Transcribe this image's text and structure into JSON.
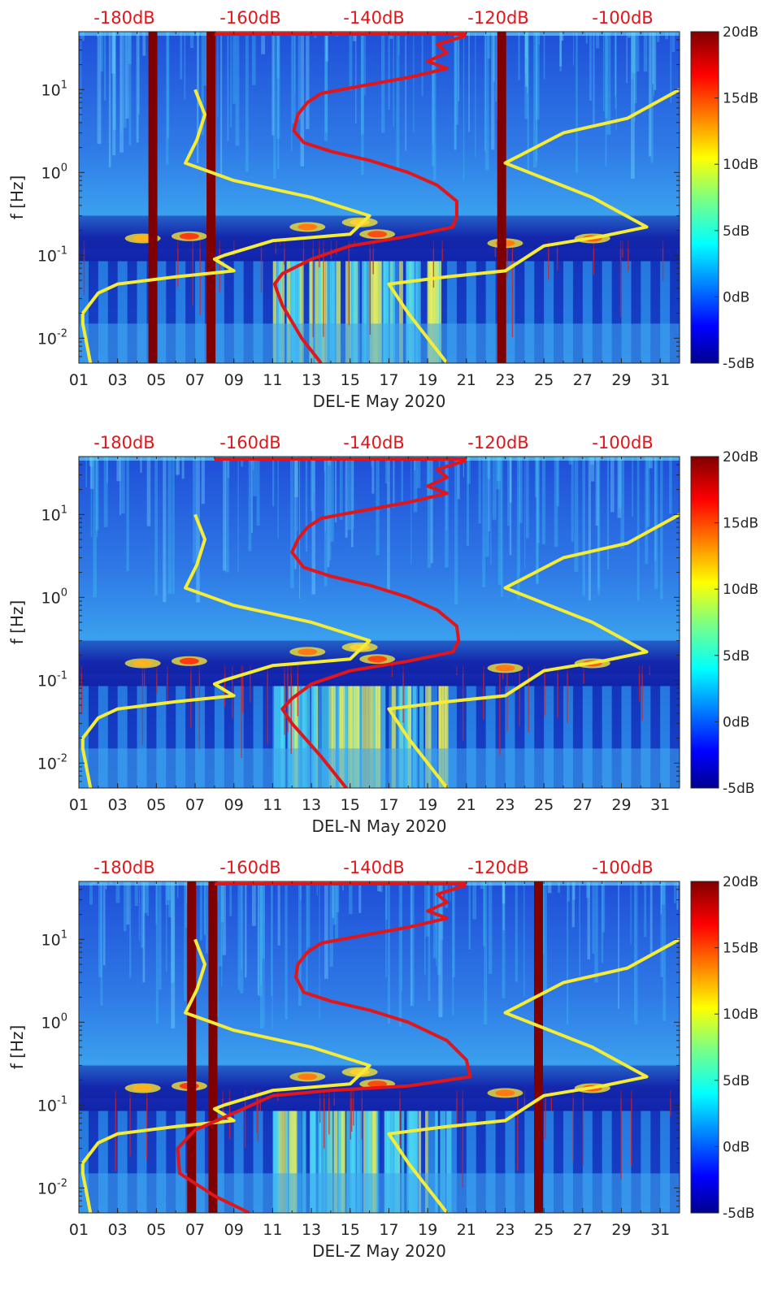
{
  "colors": {
    "background": "#ffffff",
    "axis": "#262626",
    "ambient_db_labels": "#e0161a",
    "red_curve": "#e0161a",
    "yellow_curve": "#f5ec38",
    "saturated_band": "#7f0000",
    "colormap": "jet"
  },
  "chart_data": [
    {
      "type": "heatmap",
      "title": "",
      "xlabel": "DEL-E May 2020",
      "ylabel": "f [Hz]",
      "x_ticks": [
        "01",
        "03",
        "05",
        "07",
        "09",
        "11",
        "13",
        "15",
        "17",
        "19",
        "21",
        "23",
        "25",
        "27",
        "29",
        "31"
      ],
      "y_scale": "log",
      "ylim": [
        0.005,
        50
      ],
      "y_ticks": [
        {
          "base": "10",
          "exp": "1"
        },
        {
          "base": "10",
          "exp": "0"
        },
        {
          "base": "10",
          "exp": "-1"
        },
        {
          "base": "10",
          "exp": "-2"
        }
      ],
      "colorbar": {
        "labels": [
          "20dB",
          "15dB",
          "10dB",
          "5dB",
          "0dB",
          "-5dB"
        ],
        "range": [
          -5,
          20
        ],
        "colormap": "jet"
      },
      "top_db_labels": [
        "-180dB",
        "-160dB",
        "-140dB",
        "-120dB",
        "-100dB"
      ],
      "saturated_days": [
        4.8,
        7.8,
        22.8
      ],
      "red_curve": [
        [
          21,
          45
        ],
        [
          19.5,
          35
        ],
        [
          20,
          28
        ],
        [
          19,
          22
        ],
        [
          20,
          18
        ],
        [
          18,
          14
        ],
        [
          15.5,
          11
        ],
        [
          13.5,
          9
        ],
        [
          12.8,
          7
        ],
        [
          12.3,
          5
        ],
        [
          12.1,
          3.2
        ],
        [
          12.6,
          2.3
        ],
        [
          14,
          1.8
        ],
        [
          16,
          1.4
        ],
        [
          18,
          1.0
        ],
        [
          19.5,
          0.7
        ],
        [
          20.5,
          0.45
        ],
        [
          20.5,
          0.3
        ],
        [
          20.3,
          0.22
        ],
        [
          18,
          0.17
        ],
        [
          15,
          0.13
        ],
        [
          13,
          0.09
        ],
        [
          11.5,
          0.06
        ],
        [
          11.1,
          0.045
        ],
        [
          11.5,
          0.025
        ],
        [
          12.5,
          0.01
        ],
        [
          13.5,
          0.005
        ]
      ],
      "yellow_left": [
        [
          7.0,
          10
        ],
        [
          7.5,
          5
        ],
        [
          7.1,
          2.5
        ],
        [
          6.5,
          1.3
        ],
        [
          9,
          0.8
        ],
        [
          13,
          0.5
        ],
        [
          16,
          0.3
        ],
        [
          15,
          0.18
        ],
        [
          11,
          0.15
        ],
        [
          8.5,
          0.1
        ],
        [
          8,
          0.09
        ],
        [
          9.0,
          0.065
        ],
        [
          6,
          0.055
        ],
        [
          3,
          0.045
        ],
        [
          2,
          0.035
        ],
        [
          1.2,
          0.02
        ],
        [
          1.2,
          0.015
        ],
        [
          1.6,
          0.005
        ]
      ],
      "yellow_right": [
        [
          32,
          10
        ],
        [
          29.3,
          4.5
        ],
        [
          26,
          3
        ],
        [
          23,
          1.3
        ],
        [
          27.5,
          0.5
        ],
        [
          30.3,
          0.22
        ],
        [
          28,
          0.17
        ],
        [
          25,
          0.13
        ],
        [
          23,
          0.065
        ],
        [
          20,
          0.055
        ],
        [
          17,
          0.045
        ],
        [
          18,
          0.02
        ],
        [
          20,
          0.005
        ]
      ]
    },
    {
      "type": "heatmap",
      "title": "",
      "xlabel": "DEL-N May 2020",
      "ylabel": "f [Hz]",
      "x_ticks": [
        "01",
        "03",
        "05",
        "07",
        "09",
        "11",
        "13",
        "15",
        "17",
        "19",
        "21",
        "23",
        "25",
        "27",
        "29",
        "31"
      ],
      "y_scale": "log",
      "ylim": [
        0.005,
        50
      ],
      "y_ticks": [
        {
          "base": "10",
          "exp": "1"
        },
        {
          "base": "10",
          "exp": "0"
        },
        {
          "base": "10",
          "exp": "-1"
        },
        {
          "base": "10",
          "exp": "-2"
        }
      ],
      "colorbar": {
        "labels": [
          "20dB",
          "15dB",
          "10dB",
          "5dB",
          "0dB",
          "-5dB"
        ],
        "range": [
          -5,
          20
        ],
        "colormap": "jet"
      },
      "top_db_labels": [
        "-180dB",
        "-160dB",
        "-140dB",
        "-120dB",
        "-100dB"
      ],
      "saturated_days": [],
      "red_curve": [
        [
          21,
          45
        ],
        [
          19.5,
          35
        ],
        [
          20,
          28
        ],
        [
          19,
          22
        ],
        [
          20,
          18
        ],
        [
          18,
          14
        ],
        [
          15.5,
          11
        ],
        [
          13.5,
          9
        ],
        [
          12.8,
          7
        ],
        [
          12.3,
          5
        ],
        [
          12.0,
          3.5
        ],
        [
          12.6,
          2.3
        ],
        [
          14,
          1.8
        ],
        [
          16,
          1.4
        ],
        [
          18,
          1.0
        ],
        [
          19.5,
          0.7
        ],
        [
          20.5,
          0.45
        ],
        [
          20.6,
          0.3
        ],
        [
          20.3,
          0.22
        ],
        [
          18,
          0.17
        ],
        [
          15,
          0.13
        ],
        [
          13,
          0.09
        ],
        [
          12,
          0.06
        ],
        [
          11.5,
          0.045
        ],
        [
          12,
          0.03
        ],
        [
          13.5,
          0.012
        ],
        [
          14.8,
          0.005
        ]
      ],
      "yellow_left": [
        [
          7.0,
          10
        ],
        [
          7.5,
          5
        ],
        [
          7.1,
          2.5
        ],
        [
          6.5,
          1.3
        ],
        [
          9,
          0.8
        ],
        [
          13,
          0.5
        ],
        [
          16,
          0.3
        ],
        [
          15,
          0.18
        ],
        [
          11,
          0.15
        ],
        [
          8.5,
          0.1
        ],
        [
          8,
          0.09
        ],
        [
          9.0,
          0.065
        ],
        [
          6,
          0.055
        ],
        [
          3,
          0.045
        ],
        [
          2,
          0.035
        ],
        [
          1.2,
          0.02
        ],
        [
          1.2,
          0.015
        ],
        [
          1.6,
          0.005
        ]
      ],
      "yellow_right": [
        [
          32,
          10
        ],
        [
          29.3,
          4.5
        ],
        [
          26,
          3
        ],
        [
          23,
          1.3
        ],
        [
          27.5,
          0.5
        ],
        [
          30.3,
          0.22
        ],
        [
          28,
          0.17
        ],
        [
          25,
          0.13
        ],
        [
          23,
          0.065
        ],
        [
          20,
          0.055
        ],
        [
          17,
          0.045
        ],
        [
          18,
          0.02
        ],
        [
          20,
          0.005
        ]
      ]
    },
    {
      "type": "heatmap",
      "title": "",
      "xlabel": "DEL-Z May 2020",
      "ylabel": "f [Hz]",
      "x_ticks": [
        "01",
        "03",
        "05",
        "07",
        "09",
        "11",
        "13",
        "15",
        "17",
        "19",
        "21",
        "23",
        "25",
        "27",
        "29",
        "31"
      ],
      "y_scale": "log",
      "ylim": [
        0.005,
        50
      ],
      "y_ticks": [
        {
          "base": "10",
          "exp": "1"
        },
        {
          "base": "10",
          "exp": "0"
        },
        {
          "base": "10",
          "exp": "-1"
        },
        {
          "base": "10",
          "exp": "-2"
        }
      ],
      "colorbar": {
        "labels": [
          "20dB",
          "15dB",
          "10dB",
          "5dB",
          "0dB",
          "-5dB"
        ],
        "range": [
          -5,
          20
        ],
        "colormap": "jet"
      },
      "top_db_labels": [
        "-180dB",
        "-160dB",
        "-140dB",
        "-120dB",
        "-100dB"
      ],
      "saturated_days": [
        6.8,
        7.9,
        24.7
      ],
      "red_curve": [
        [
          21,
          45
        ],
        [
          19.5,
          35
        ],
        [
          20,
          28
        ],
        [
          19,
          22
        ],
        [
          20,
          18
        ],
        [
          18,
          14
        ],
        [
          15.5,
          11
        ],
        [
          13.5,
          9
        ],
        [
          12.8,
          7
        ],
        [
          12.3,
          5
        ],
        [
          12.2,
          3.5
        ],
        [
          12.6,
          2.3
        ],
        [
          14,
          1.8
        ],
        [
          16,
          1.4
        ],
        [
          18,
          1.0
        ],
        [
          20,
          0.6
        ],
        [
          21,
          0.35
        ],
        [
          21.2,
          0.22
        ],
        [
          18,
          0.17
        ],
        [
          14,
          0.15
        ],
        [
          11,
          0.13
        ],
        [
          9,
          0.08
        ],
        [
          7,
          0.05
        ],
        [
          6.1,
          0.03
        ],
        [
          6.2,
          0.015
        ],
        [
          8,
          0.008
        ],
        [
          9.8,
          0.005
        ]
      ],
      "yellow_left": [
        [
          7.0,
          10
        ],
        [
          7.5,
          5
        ],
        [
          7.1,
          2.5
        ],
        [
          6.5,
          1.3
        ],
        [
          9,
          0.8
        ],
        [
          13,
          0.5
        ],
        [
          16,
          0.3
        ],
        [
          15,
          0.18
        ],
        [
          11,
          0.15
        ],
        [
          8.5,
          0.1
        ],
        [
          8,
          0.09
        ],
        [
          9.0,
          0.065
        ],
        [
          6,
          0.055
        ],
        [
          3,
          0.045
        ],
        [
          2,
          0.035
        ],
        [
          1.2,
          0.02
        ],
        [
          1.2,
          0.015
        ],
        [
          1.6,
          0.005
        ]
      ],
      "yellow_right": [
        [
          32,
          10
        ],
        [
          29.3,
          4.5
        ],
        [
          26,
          3
        ],
        [
          23,
          1.3
        ],
        [
          27.5,
          0.5
        ],
        [
          30.3,
          0.22
        ],
        [
          28,
          0.17
        ],
        [
          25,
          0.13
        ],
        [
          23,
          0.065
        ],
        [
          20,
          0.055
        ],
        [
          17,
          0.045
        ],
        [
          18,
          0.02
        ],
        [
          20,
          0.005
        ]
      ]
    }
  ]
}
